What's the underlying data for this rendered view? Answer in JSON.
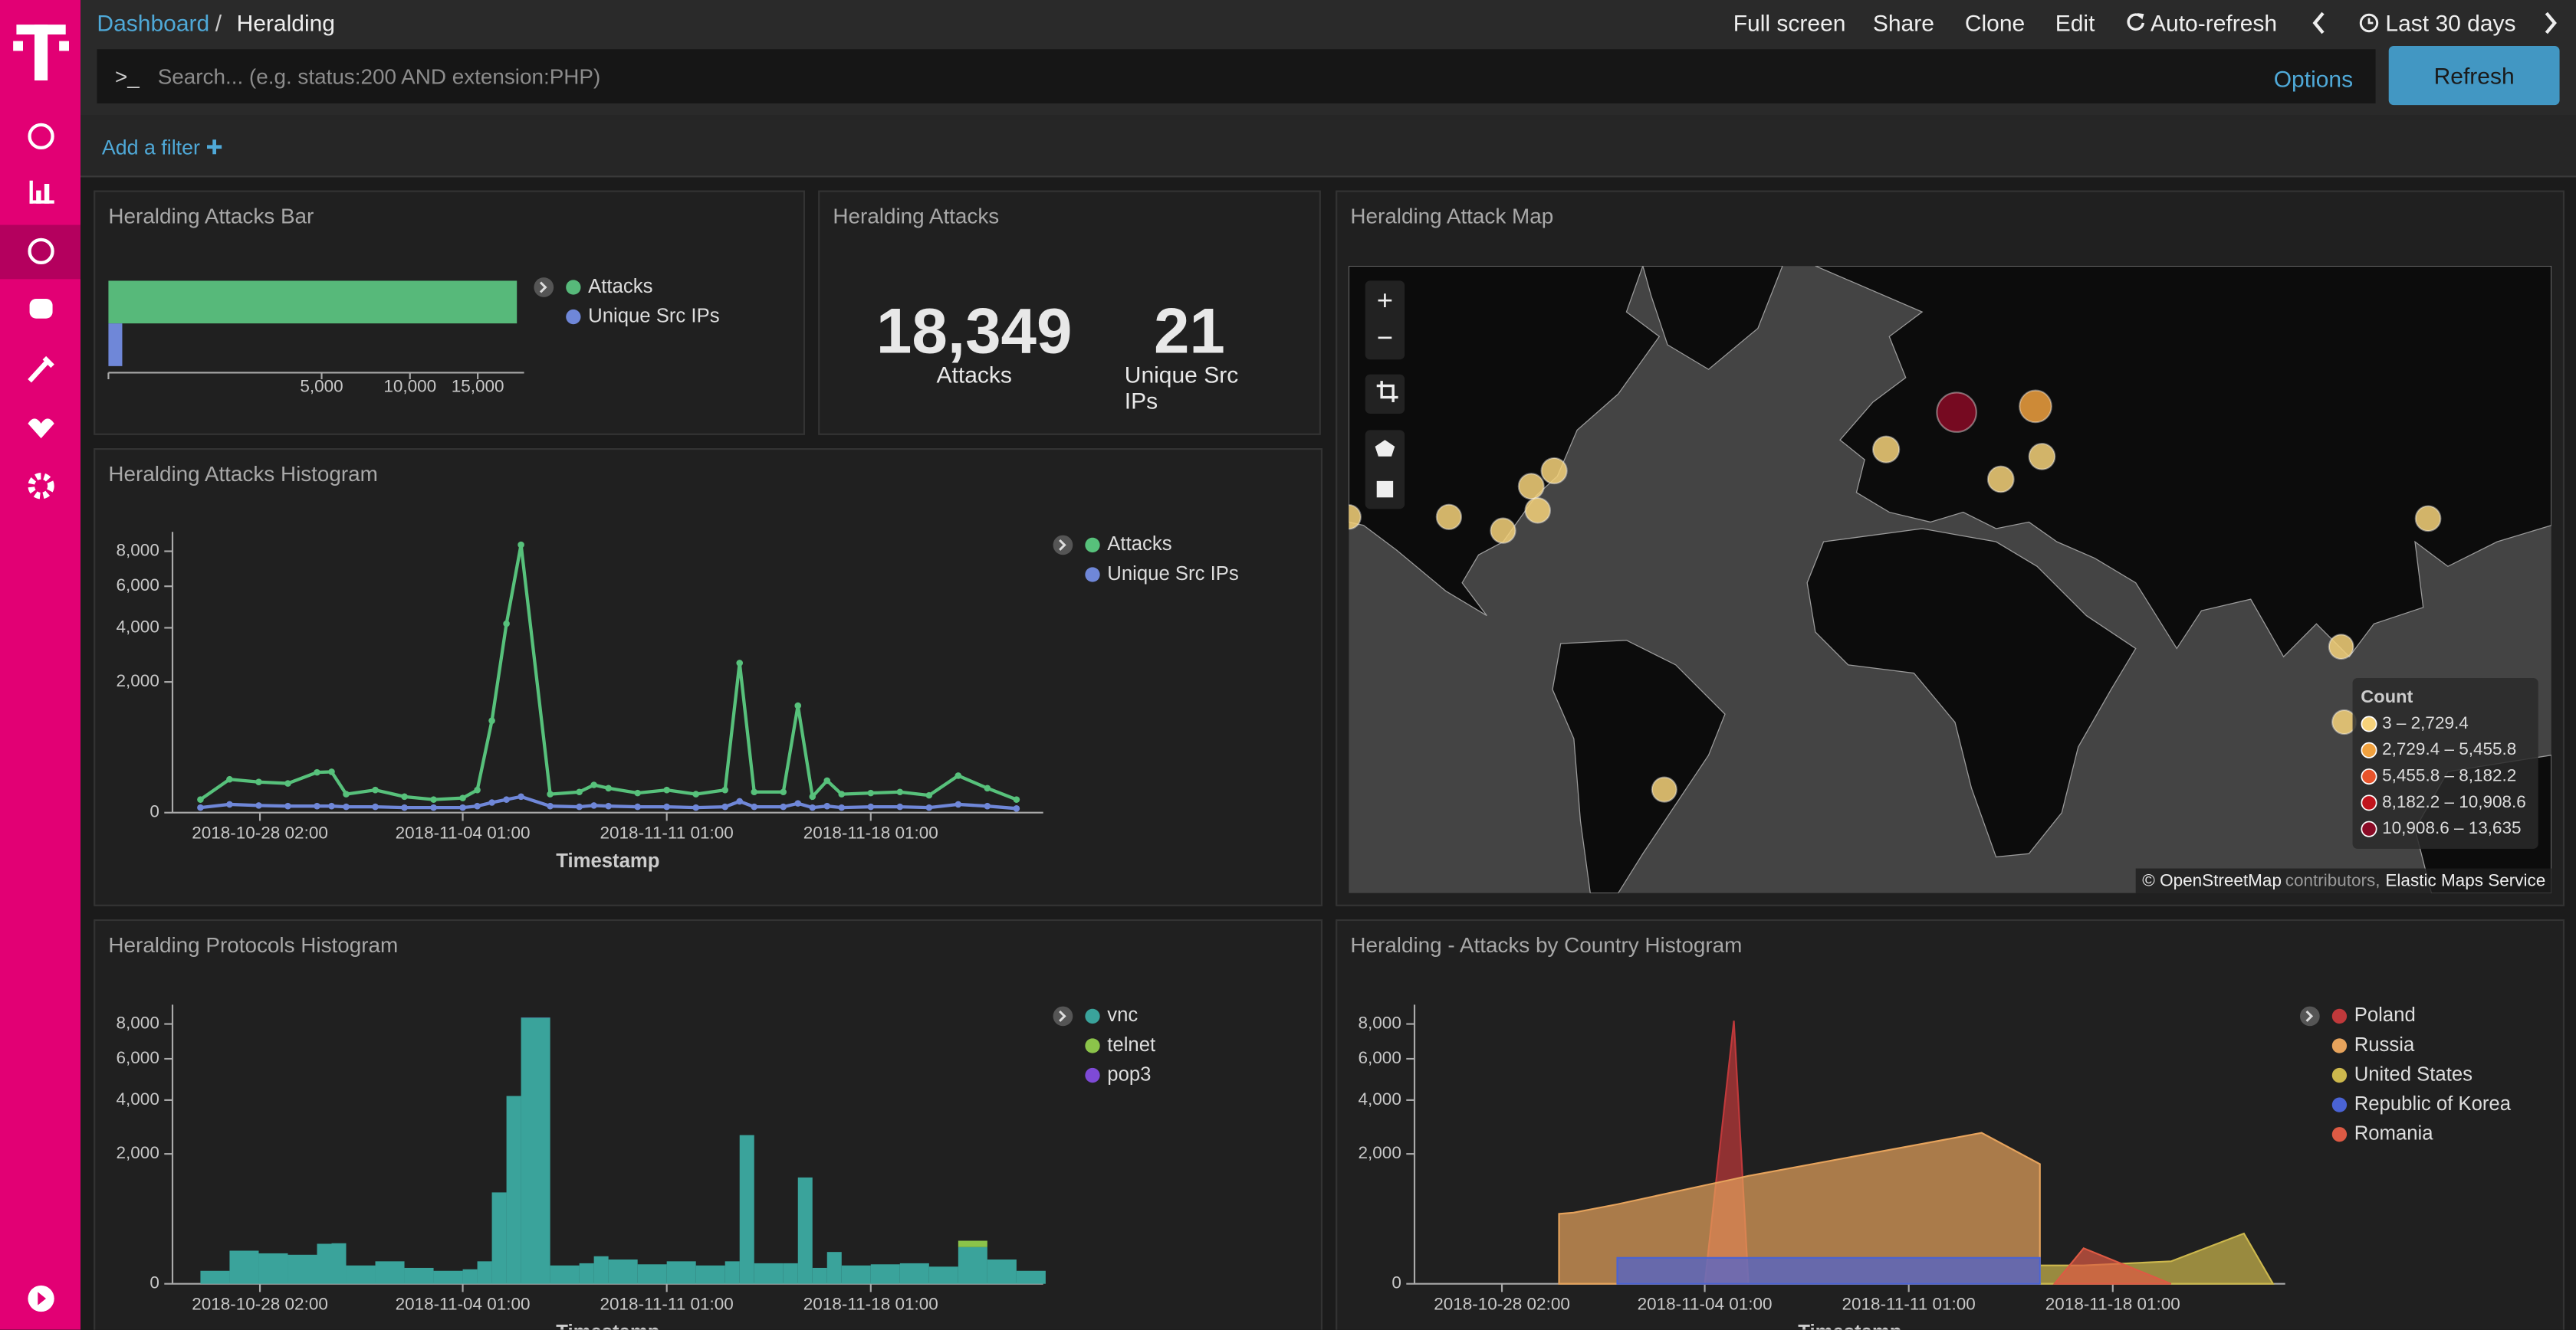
{
  "breadcrumb": {
    "root": "Dashboard",
    "separator": "/",
    "current": "Heralding"
  },
  "toolbar": [
    "Full screen",
    "Share",
    "Clone",
    "Edit",
    "Auto-refresh",
    "Last 30 days"
  ],
  "query": {
    "prompt": ">_",
    "placeholder": "Search... (e.g. status:200 AND extension:PHP)",
    "options": "Options",
    "refresh": "Refresh"
  },
  "add_filter": "Add a filter",
  "panels": [
    {
      "title": "Heralding Attacks Bar",
      "chart_data": {
        "type": "hbar",
        "xscale": "sqrt",
        "xlim": [
          0,
          19000
        ],
        "xticks": [
          {
            "value": 5000,
            "label": "5,000"
          },
          {
            "value": 10000,
            "label": "10,000"
          },
          {
            "value": 15000,
            "label": "15,000"
          }
        ],
        "series": [
          {
            "name": "Attacks",
            "color": "#57b97a",
            "values": [
              18349
            ]
          },
          {
            "name": "Unique Src IPs",
            "color": "#6f87d8",
            "values": [
              21
            ]
          }
        ]
      }
    },
    {
      "title": "Heralding Attacks",
      "metrics": [
        {
          "value": "18,349",
          "label": "Attacks"
        },
        {
          "value": "21",
          "label": "Unique Src IPs"
        }
      ]
    },
    {
      "title": "Heralding Attack Map",
      "map": {
        "zoom": [
          "+",
          "−"
        ],
        "legend_title": "Count",
        "legend": [
          {
            "from": 3,
            "to": 2729.4,
            "label": "3 – 2,729.4",
            "color": "#f6d27a"
          },
          {
            "from": 2729.4,
            "to": 5455.8,
            "label": "2,729.4 – 5,455.8",
            "color": "#f0a13f"
          },
          {
            "from": 5455.8,
            "to": 8182.2,
            "label": "5,455.8 – 8,182.2",
            "color": "#e8542c"
          },
          {
            "from": 8182.2,
            "to": 10908.6,
            "label": "8,182.2 – 10,908.6",
            "color": "#c0141c"
          },
          {
            "from": 10908.6,
            "to": 13635,
            "label": "10,908.6 – 13,635",
            "color": "#8a0b26"
          }
        ],
        "points": [
          {
            "lat": 55.4,
            "lon": 37.0,
            "count": 4000
          },
          {
            "lat": 54.6,
            "lon": 16.3,
            "count": 13635
          },
          {
            "lat": 49.2,
            "lon": -2.2,
            "count": 520
          },
          {
            "lat": 44.4,
            "lon": 27.9,
            "count": 410
          },
          {
            "lat": 48.1,
            "lon": 38.7,
            "count": 380
          },
          {
            "lat": 45.8,
            "lon": -89.3,
            "count": 300
          },
          {
            "lat": 43.2,
            "lon": -95.3,
            "count": 250
          },
          {
            "lat": 38.9,
            "lon": -93.6,
            "count": 180
          },
          {
            "lat": 35.1,
            "lon": -102.7,
            "count": 150
          },
          {
            "lat": 37.7,
            "lon": -116.9,
            "count": 140
          },
          {
            "lat": 37.7,
            "lon": -143.2,
            "count": 60
          },
          {
            "lat": 37.4,
            "lon": 140.0,
            "count": 200
          },
          {
            "lat": 10.1,
            "lon": 117.2,
            "count": 90
          },
          {
            "lat": -7.6,
            "lon": 118.0,
            "count": 40
          },
          {
            "lat": -22.9,
            "lon": -60.4,
            "count": 120
          }
        ],
        "attribution": {
          "source": "© OpenStreetMap",
          "middle": "contributors,",
          "service": "Elastic Maps Service"
        }
      }
    },
    {
      "title": "Heralding Attacks Histogram",
      "chart_data": {
        "type": "line",
        "xlabel": "Timestamp",
        "yscale": "sqrt",
        "x": [
          "2018-10-26 01:00",
          "2018-10-27 01:00",
          "2018-10-28 01:00",
          "2018-10-29 01:00",
          "2018-10-30 01:00",
          "2018-10-30 13:00",
          "2018-10-31 01:00",
          "2018-11-01 01:00",
          "2018-11-02 01:00",
          "2018-11-03 01:00",
          "2018-11-04 01:00",
          "2018-11-04 13:00",
          "2018-11-05 01:00",
          "2018-11-05 13:00",
          "2018-11-06 01:00",
          "2018-11-07 01:00",
          "2018-11-08 01:00",
          "2018-11-08 13:00",
          "2018-11-09 01:00",
          "2018-11-10 01:00",
          "2018-11-11 01:00",
          "2018-11-12 01:00",
          "2018-11-13 01:00",
          "2018-11-13 13:00",
          "2018-11-14 01:00",
          "2018-11-15 01:00",
          "2018-11-15 13:00",
          "2018-11-16 01:00",
          "2018-11-16 13:00",
          "2018-11-17 01:00",
          "2018-11-18 01:00",
          "2018-11-19 01:00",
          "2018-11-20 01:00",
          "2018-11-21 01:00",
          "2018-11-22 01:00",
          "2018-11-23 01:00"
        ],
        "xlim": [
          "2018-10-25 02:00",
          "2018-11-23 23:00"
        ],
        "xticks": [
          "2018-10-28 02:00",
          "2018-11-04 01:00",
          "2018-11-11 01:00",
          "2018-11-18 01:00"
        ],
        "ylim": [
          0,
          8800
        ],
        "yticks": [
          0,
          {
            "value": 2000,
            "label": "2,000"
          },
          {
            "value": 4000,
            "label": "4,000"
          },
          {
            "value": 6000,
            "label": "6,000"
          },
          {
            "value": 8000,
            "label": "8,000"
          }
        ],
        "series": [
          {
            "name": "Attacks",
            "color": "#57c17b",
            "values": [
              20,
              130,
              110,
              100,
              190,
              195,
              40,
              60,
              30,
              20,
              25,
              60,
              990,
              4180,
              8400,
              40,
              50,
              90,
              70,
              45,
              60,
              40,
              60,
              2620,
              50,
              50,
              1340,
              30,
              120,
              40,
              45,
              50,
              35,
              160,
              70,
              20
            ]
          },
          {
            "name": "Unique Src IPs",
            "color": "#6f87d8",
            "values": [
              3,
              8,
              6,
              5,
              5,
              5,
              4,
              4,
              3,
              3,
              3,
              5,
              12,
              20,
              30,
              5,
              4,
              6,
              5,
              4,
              4,
              3,
              4,
              15,
              4,
              4,
              10,
              3,
              5,
              3,
              4,
              4,
              3,
              8,
              5,
              2
            ]
          }
        ]
      }
    },
    {
      "title": "Heralding Protocols Histogram",
      "chart_data": {
        "type": "bar",
        "xlabel": "Timestamp",
        "yscale": "sqrt",
        "x": [
          "2018-10-26 01:00",
          "2018-10-27 01:00",
          "2018-10-28 01:00",
          "2018-10-29 01:00",
          "2018-10-30 01:00",
          "2018-10-30 13:00",
          "2018-10-31 01:00",
          "2018-11-01 01:00",
          "2018-11-02 01:00",
          "2018-11-03 01:00",
          "2018-11-04 01:00",
          "2018-11-04 13:00",
          "2018-11-05 01:00",
          "2018-11-05 13:00",
          "2018-11-06 01:00",
          "2018-11-07 01:00",
          "2018-11-08 01:00",
          "2018-11-08 13:00",
          "2018-11-09 01:00",
          "2018-11-10 01:00",
          "2018-11-11 01:00",
          "2018-11-12 01:00",
          "2018-11-13 01:00",
          "2018-11-13 13:00",
          "2018-11-14 01:00",
          "2018-11-15 01:00",
          "2018-11-15 13:00",
          "2018-11-16 01:00",
          "2018-11-16 13:00",
          "2018-11-17 01:00",
          "2018-11-18 01:00",
          "2018-11-19 01:00",
          "2018-11-20 01:00",
          "2018-11-21 01:00",
          "2018-11-22 01:00",
          "2018-11-23 01:00"
        ],
        "xlim": [
          "2018-10-25 02:00",
          "2018-11-23 23:00"
        ],
        "xticks": [
          "2018-10-28 02:00",
          "2018-11-04 01:00",
          "2018-11-11 01:00",
          "2018-11-18 01:00"
        ],
        "ylim": [
          0,
          8800
        ],
        "yticks": [
          0,
          {
            "value": 2000,
            "label": "2,000"
          },
          {
            "value": 4000,
            "label": "4,000"
          },
          {
            "value": 6000,
            "label": "6,000"
          },
          {
            "value": 8000,
            "label": "8,000"
          }
        ],
        "series": [
          {
            "name": "vnc",
            "color": "#3aa39b",
            "values": [
              20,
              130,
              110,
              100,
              190,
              195,
              40,
              60,
              30,
              20,
              25,
              60,
              990,
              4180,
              8400,
              40,
              50,
              90,
              70,
              45,
              60,
              40,
              60,
              2620,
              50,
              50,
              1340,
              30,
              120,
              40,
              45,
              50,
              35,
              160,
              70,
              20
            ]
          },
          {
            "name": "telnet",
            "color": "#8bc34a",
            "values": [
              0,
              0,
              0,
              0,
              0,
              0,
              0,
              0,
              0,
              0,
              0,
              0,
              0,
              0,
              0,
              0,
              0,
              0,
              0,
              0,
              0,
              0,
              0,
              0,
              0,
              0,
              0,
              0,
              0,
              0,
              0,
              0,
              0,
              60,
              0,
              0
            ]
          },
          {
            "name": "pop3",
            "color": "#7e4ad6",
            "values": [
              0,
              0,
              0,
              0,
              0,
              0,
              0,
              0,
              0,
              0,
              0,
              0,
              0,
              0,
              10,
              0,
              0,
              0,
              0,
              0,
              0,
              0,
              0,
              0,
              0,
              0,
              0,
              0,
              0,
              0,
              0,
              0,
              0,
              0,
              0,
              0
            ]
          }
        ]
      }
    },
    {
      "title": "Heralding - Attacks by Country Histogram",
      "chart_data": {
        "type": "area",
        "xlabel": "Timestamp",
        "yscale": "sqrt",
        "x": [
          "2018-10-30 01:00",
          "2018-10-30 13:00",
          "2018-11-01 01:00",
          "2018-11-04 01:00",
          "2018-11-05 01:00",
          "2018-11-05 13:00",
          "2018-11-13 13:00",
          "2018-11-15 13:00",
          "2018-11-16 01:00",
          "2018-11-17 01:00",
          "2018-11-20 01:00",
          "2018-11-22 13:00",
          "2018-11-23 13:00"
        ],
        "xlim": [
          "2018-10-25 02:00",
          "2018-11-23 23:00"
        ],
        "xticks": [
          "2018-10-28 02:00",
          "2018-11-04 01:00",
          "2018-11-11 01:00",
          "2018-11-18 01:00"
        ],
        "ylim": [
          0,
          8800
        ],
        "yticks": [
          0,
          {
            "value": 2000,
            "label": "2,000"
          },
          {
            "value": 4000,
            "label": "4,000"
          },
          {
            "value": 6000,
            "label": "6,000"
          },
          {
            "value": 8000,
            "label": "8,000"
          }
        ],
        "series": [
          {
            "name": "Poland",
            "color": "#c0393b",
            "values": [
              null,
              null,
              null,
              0,
              8200,
              0,
              null,
              null,
              null,
              null,
              null,
              null,
              null
            ]
          },
          {
            "name": "Russia",
            "color": "#e6a35c",
            "values": [
              580,
              600,
              750,
              1150,
              1300,
              1380,
              2700,
              1700,
              null,
              null,
              null,
              null,
              null
            ]
          },
          {
            "name": "United States",
            "color": "#cdb84d",
            "values": [
              null,
              null,
              null,
              null,
              null,
              null,
              null,
              40,
              40,
              40,
              60,
              300,
              0
            ]
          },
          {
            "name": "Republic of Korea",
            "color": "#4a63d4",
            "values": [
              null,
              null,
              80,
              80,
              80,
              80,
              80,
              80,
              null,
              null,
              null,
              null,
              null
            ]
          },
          {
            "name": "Romania",
            "color": "#dd5a44",
            "values": [
              null,
              null,
              null,
              null,
              null,
              null,
              null,
              null,
              0,
              150,
              0,
              null,
              null
            ]
          }
        ]
      }
    }
  ]
}
